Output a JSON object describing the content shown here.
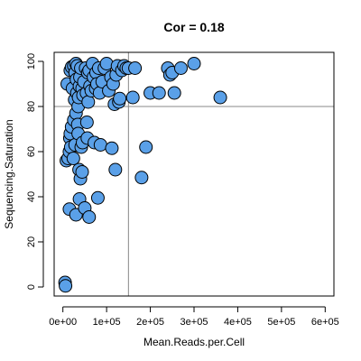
{
  "chart_data": {
    "type": "scatter",
    "title": "Cor = 0.18",
    "xlabel": "Mean.Reads.per.Cell",
    "ylabel": "Sequencing.Saturation",
    "xlim": [
      -20000,
      620000
    ],
    "ylim": [
      -4,
      104
    ],
    "xticks": [
      0,
      100000,
      200000,
      300000,
      400000,
      500000,
      600000
    ],
    "xtick_labels": [
      "0e+00",
      "1e+05",
      "2e+05",
      "3e+05",
      "4e+05",
      "5e+05",
      "6e+05"
    ],
    "yticks": [
      0,
      20,
      40,
      60,
      80,
      100
    ],
    "ytick_labels": [
      "0",
      "20",
      "40",
      "60",
      "80",
      "100"
    ],
    "reference_lines": {
      "x": 150000,
      "y": 80
    },
    "grid": false,
    "point_color": "#5aa0e8",
    "point_edge_color": "#000000",
    "points": [
      [
        5000,
        2
      ],
      [
        6000,
        0.5
      ],
      [
        8000,
        56
      ],
      [
        10000,
        90
      ],
      [
        12000,
        57
      ],
      [
        15000,
        34.5
      ],
      [
        15000,
        60
      ],
      [
        16000,
        66
      ],
      [
        17000,
        96
      ],
      [
        17000,
        68
      ],
      [
        18000,
        62
      ],
      [
        20000,
        71
      ],
      [
        20000,
        97.5
      ],
      [
        22000,
        88
      ],
      [
        24000,
        57
      ],
      [
        25000,
        98
      ],
      [
        25000,
        74
      ],
      [
        27000,
        83
      ],
      [
        28000,
        95
      ],
      [
        28000,
        63
      ],
      [
        30000,
        32
      ],
      [
        30000,
        99
      ],
      [
        30000,
        77
      ],
      [
        31000,
        92
      ],
      [
        32000,
        86
      ],
      [
        33000,
        98
      ],
      [
        34000,
        72
      ],
      [
        35000,
        68
      ],
      [
        35000,
        80
      ],
      [
        36000,
        84
      ],
      [
        37000,
        52
      ],
      [
        38000,
        89
      ],
      [
        38000,
        39
      ],
      [
        39000,
        93
      ],
      [
        40000,
        48
      ],
      [
        41000,
        97
      ],
      [
        42000,
        62
      ],
      [
        44000,
        51
      ],
      [
        44000,
        88
      ],
      [
        45000,
        64
      ],
      [
        46000,
        85
      ],
      [
        48000,
        91
      ],
      [
        50000,
        35
      ],
      [
        52000,
        97
      ],
      [
        54000,
        86
      ],
      [
        55000,
        73
      ],
      [
        56000,
        66
      ],
      [
        57000,
        95
      ],
      [
        58000,
        82
      ],
      [
        60000,
        31
      ],
      [
        60000,
        96
      ],
      [
        62000,
        89
      ],
      [
        65000,
        87
      ],
      [
        68000,
        99
      ],
      [
        70000,
        93
      ],
      [
        72000,
        64
      ],
      [
        75000,
        88
      ],
      [
        76000,
        95
      ],
      [
        78000,
        90
      ],
      [
        80000,
        39.5
      ],
      [
        82000,
        97
      ],
      [
        84000,
        86
      ],
      [
        86000,
        63
      ],
      [
        90000,
        91
      ],
      [
        95000,
        97
      ],
      [
        100000,
        99
      ],
      [
        105000,
        87
      ],
      [
        110000,
        93
      ],
      [
        112000,
        61.5
      ],
      [
        115000,
        90
      ],
      [
        118000,
        81
      ],
      [
        120000,
        52
      ],
      [
        122000,
        94
      ],
      [
        125000,
        98
      ],
      [
        128000,
        82
      ],
      [
        130000,
        83.5
      ],
      [
        135000,
        96
      ],
      [
        140000,
        98
      ],
      [
        145000,
        97
      ],
      [
        150000,
        97
      ],
      [
        160000,
        84
      ],
      [
        165000,
        97
      ],
      [
        180000,
        48.5
      ],
      [
        190000,
        62
      ],
      [
        200000,
        86
      ],
      [
        220000,
        86
      ],
      [
        240000,
        97
      ],
      [
        245000,
        94
      ],
      [
        250000,
        95
      ],
      [
        255000,
        86
      ],
      [
        270000,
        97
      ],
      [
        300000,
        99
      ],
      [
        360000,
        84
      ]
    ]
  }
}
